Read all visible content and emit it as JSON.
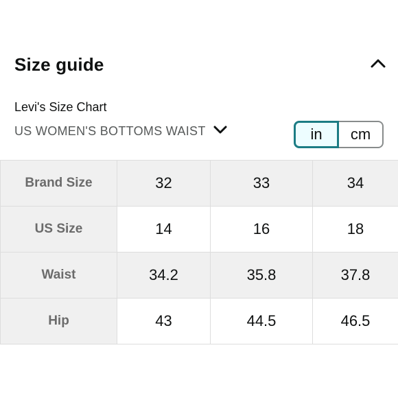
{
  "header": {
    "title": "Size guide",
    "collapse_icon": "chevron-up-icon"
  },
  "chart": {
    "name": "Levi's Size Chart",
    "category": "US WOMEN'S BOTTOMS WAIST",
    "category_icon": "chevron-down-icon"
  },
  "units": {
    "options": [
      "in",
      "cm"
    ],
    "selected": "in"
  },
  "table": {
    "rows": [
      {
        "label": "Brand Size",
        "values": [
          "32",
          "33",
          "34"
        ]
      },
      {
        "label": "US Size",
        "values": [
          "14",
          "16",
          "18"
        ]
      },
      {
        "label": "Waist",
        "values": [
          "34.2",
          "35.8",
          "37.8"
        ]
      },
      {
        "label": "Hip",
        "values": [
          "43",
          "44.5",
          "46.5"
        ]
      }
    ]
  },
  "colors": {
    "selected_border": "#1b7c84",
    "selected_bg": "#edfdff",
    "shaded_row": "#f0f0f0"
  }
}
